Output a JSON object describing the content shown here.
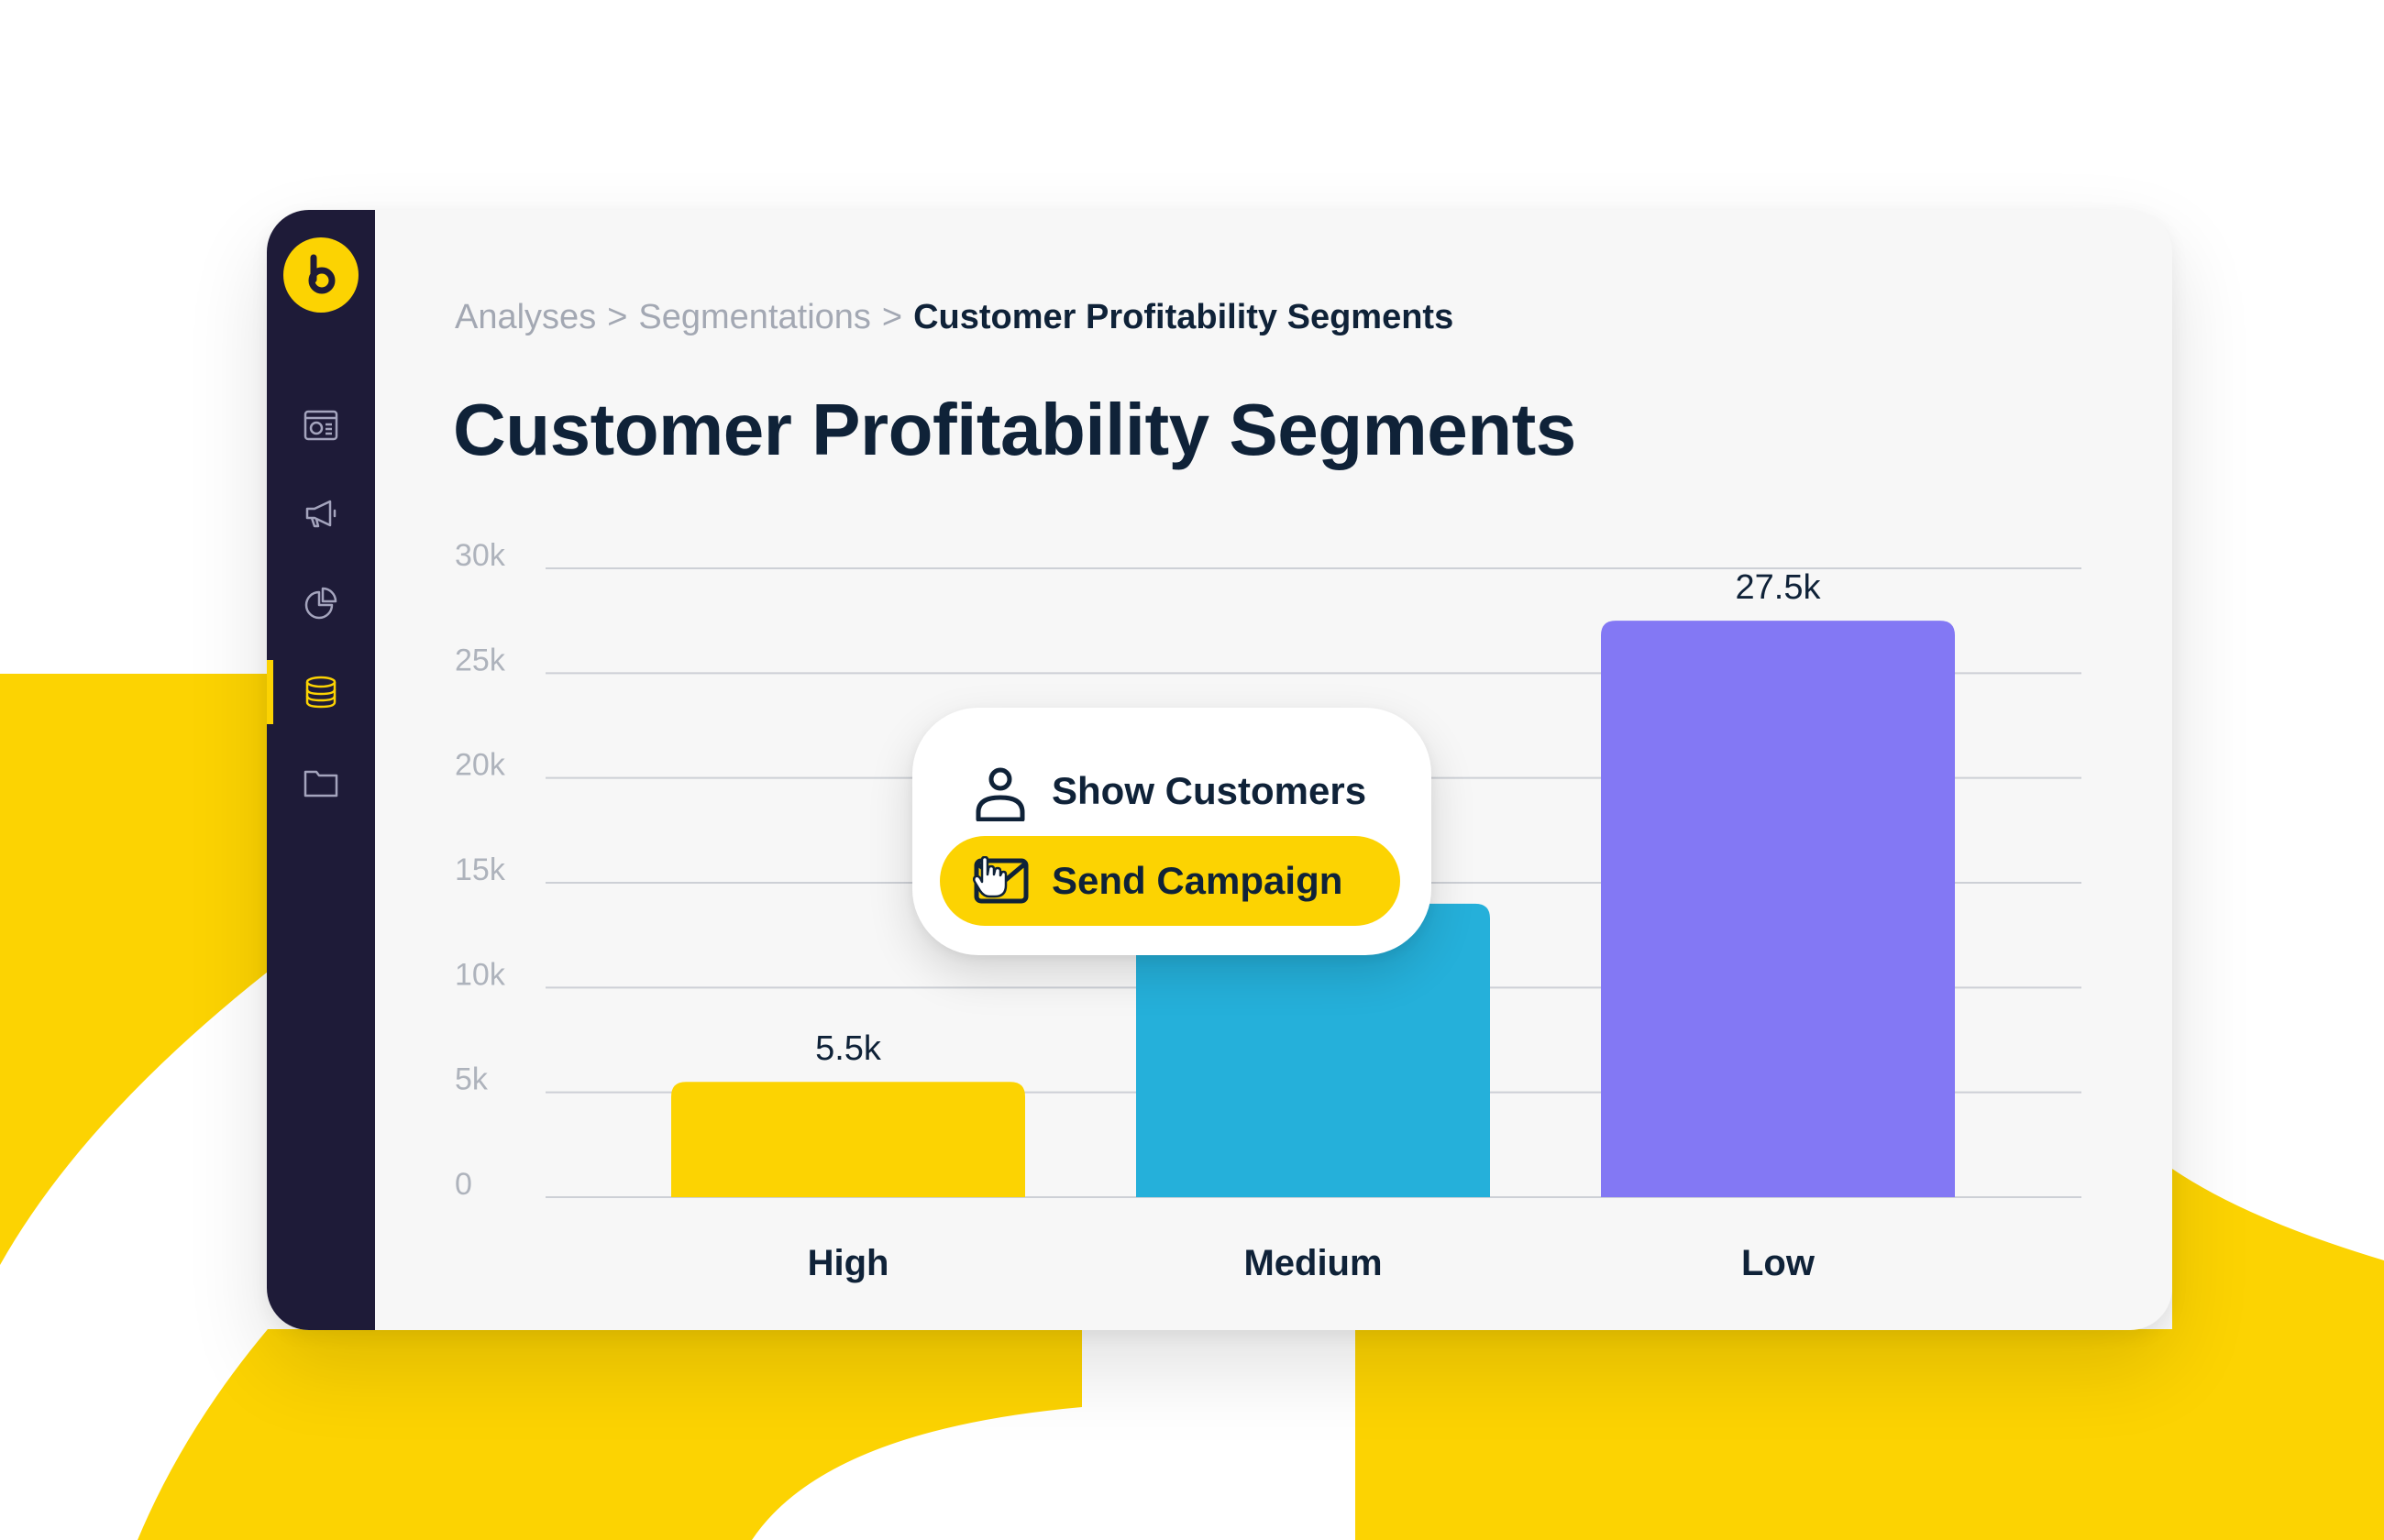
{
  "breadcrumb": {
    "items": [
      "Analyses",
      "Segmentations"
    ],
    "separator": ">",
    "current": "Customer Profitability Segments"
  },
  "page": {
    "title": "Customer Profitability Segments"
  },
  "sidebar": {
    "active_item": "segments",
    "items": [
      {
        "id": "dashboard",
        "icon": "dashboard-icon"
      },
      {
        "id": "campaigns",
        "icon": "megaphone-icon"
      },
      {
        "id": "analyses",
        "icon": "pie-chart-icon"
      },
      {
        "id": "segments",
        "icon": "database-icon"
      },
      {
        "id": "files",
        "icon": "folder-icon"
      }
    ]
  },
  "context_menu": {
    "show_customers_label": "Show Customers",
    "send_campaign_label": "Send Campaign"
  },
  "colors": {
    "brand_yellow": "#fcd302",
    "sidebar_bg": "#1e1b38",
    "text_dark": "#0f2238",
    "medium_blue": "#25b0da",
    "low_purple": "#8378f4"
  },
  "chart_data": {
    "type": "bar",
    "categories": [
      "High",
      "Medium",
      "Low"
    ],
    "values": [
      5500,
      14000,
      27500
    ],
    "data_labels": [
      "5.5k",
      "",
      "27.5k"
    ],
    "bar_colors": [
      "#fcd302",
      "#25b0da",
      "#8378f4"
    ],
    "y_ticks": [
      "0",
      "5k",
      "10k",
      "15k",
      "20k",
      "25k",
      "30k"
    ],
    "ylim": [
      0,
      30000
    ],
    "grid": true,
    "title": "",
    "xlabel": "",
    "ylabel": ""
  }
}
